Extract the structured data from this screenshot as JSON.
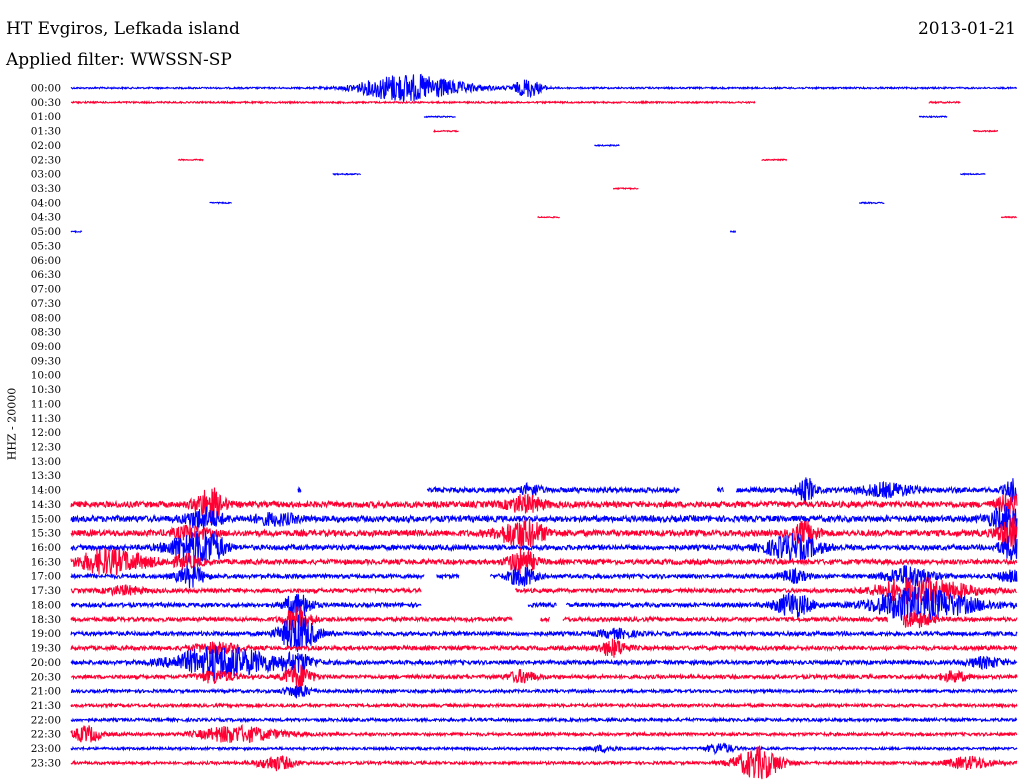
{
  "header": {
    "station": "HT Evgiros, Lefkada island",
    "date": "2013-01-21",
    "filter": "Applied filter: WWSSN-SP"
  },
  "chart_data": {
    "type": "line",
    "title": "HT Evgiros, Lefkada island",
    "subtitle": "Applied filter: WWSSN-SP",
    "date": "2013-01-21",
    "ylabel": "HHZ - 20000",
    "xlabel": "",
    "x_unit": "minutes",
    "x_range": [
      0,
      30
    ],
    "colors": {
      "even_rows": "#0000ff",
      "odd_rows": "#ff0033"
    },
    "rows": [
      {
        "label": "00:00",
        "segments": [
          [
            0,
            30
          ]
        ],
        "amp": 0.8,
        "events": [
          {
            "t": 10.5,
            "a": 14,
            "d": 0.9,
            "skew": 1.5
          },
          {
            "t": 14.5,
            "a": 9,
            "d": 0.3
          }
        ]
      },
      {
        "label": "00:30",
        "segments": [
          [
            0,
            21.7
          ],
          [
            27.2,
            28.2
          ]
        ],
        "amp": 0.8,
        "events": []
      },
      {
        "label": "01:00",
        "segments": [
          [
            11.2,
            12.2
          ],
          [
            26.9,
            27.8
          ]
        ],
        "amp": 0.6,
        "events": []
      },
      {
        "label": "01:30",
        "segments": [
          [
            11.5,
            12.3
          ],
          [
            28.6,
            29.4
          ]
        ],
        "amp": 0.6,
        "events": []
      },
      {
        "label": "02:00",
        "segments": [
          [
            16.6,
            17.4
          ]
        ],
        "amp": 0.6,
        "events": []
      },
      {
        "label": "02:30",
        "segments": [
          [
            3.4,
            4.2
          ],
          [
            21.9,
            22.7
          ]
        ],
        "amp": 0.6,
        "events": []
      },
      {
        "label": "03:00",
        "segments": [
          [
            8.3,
            9.2
          ],
          [
            28.2,
            29.0
          ]
        ],
        "amp": 0.6,
        "events": []
      },
      {
        "label": "03:30",
        "segments": [
          [
            17.2,
            18.0
          ]
        ],
        "amp": 0.6,
        "events": []
      },
      {
        "label": "04:00",
        "segments": [
          [
            4.4,
            5.1
          ],
          [
            25.0,
            25.8
          ]
        ],
        "amp": 0.6,
        "events": []
      },
      {
        "label": "04:30",
        "segments": [
          [
            14.8,
            15.5
          ],
          [
            29.5,
            30
          ]
        ],
        "amp": 0.6,
        "events": []
      },
      {
        "label": "05:00",
        "segments": [
          [
            0,
            0.35
          ],
          [
            20.9,
            21.1
          ]
        ],
        "amp": 0.6,
        "events": []
      },
      {
        "label": "05:30",
        "segments": [],
        "amp": 0,
        "events": []
      },
      {
        "label": "06:00",
        "segments": [],
        "amp": 0,
        "events": []
      },
      {
        "label": "06:30",
        "segments": [],
        "amp": 0,
        "events": []
      },
      {
        "label": "07:00",
        "segments": [],
        "amp": 0,
        "events": []
      },
      {
        "label": "07:30",
        "segments": [],
        "amp": 0,
        "events": []
      },
      {
        "label": "08:00",
        "segments": [],
        "amp": 0,
        "events": []
      },
      {
        "label": "08:30",
        "segments": [],
        "amp": 0,
        "events": []
      },
      {
        "label": "09:00",
        "segments": [],
        "amp": 0,
        "events": []
      },
      {
        "label": "09:30",
        "segments": [],
        "amp": 0,
        "events": []
      },
      {
        "label": "10:00",
        "segments": [],
        "amp": 0,
        "events": []
      },
      {
        "label": "10:30",
        "segments": [],
        "amp": 0,
        "events": []
      },
      {
        "label": "11:00",
        "segments": [],
        "amp": 0,
        "events": []
      },
      {
        "label": "11:30",
        "segments": [],
        "amp": 0,
        "events": []
      },
      {
        "label": "12:00",
        "segments": [],
        "amp": 0,
        "events": []
      },
      {
        "label": "12:30",
        "segments": [],
        "amp": 0,
        "events": []
      },
      {
        "label": "13:00",
        "segments": [],
        "amp": 0,
        "events": []
      },
      {
        "label": "13:30",
        "segments": [],
        "amp": 0,
        "events": []
      },
      {
        "label": "14:00",
        "segments": [
          [
            7.2,
            7.3
          ],
          [
            11.3,
            19.3
          ],
          [
            20.5,
            20.7
          ],
          [
            21.1,
            30
          ]
        ],
        "amp": 2.5,
        "events": [
          {
            "t": 14.6,
            "a": 6,
            "d": 0.2
          },
          {
            "t": 23.3,
            "a": 12,
            "d": 0.2
          },
          {
            "t": 25.9,
            "a": 6,
            "d": 0.6
          },
          {
            "t": 29.9,
            "a": 10,
            "d": 0.2
          }
        ]
      },
      {
        "label": "14:30",
        "segments": [
          [
            0,
            30
          ]
        ],
        "amp": 3,
        "events": [
          {
            "t": 4.4,
            "a": 16,
            "d": 0.3
          },
          {
            "t": 14.4,
            "a": 8,
            "d": 0.4
          },
          {
            "t": 29.8,
            "a": 10,
            "d": 0.3
          }
        ]
      },
      {
        "label": "15:00",
        "segments": [
          [
            0,
            30
          ]
        ],
        "amp": 3,
        "events": [
          {
            "t": 4.2,
            "a": 10,
            "d": 0.4
          },
          {
            "t": 6.5,
            "a": 5,
            "d": 0.5
          },
          {
            "t": 29.7,
            "a": 12,
            "d": 0.4
          }
        ]
      },
      {
        "label": "15:30",
        "segments": [
          [
            0,
            30
          ]
        ],
        "amp": 3,
        "events": [
          {
            "t": 3.8,
            "a": 6,
            "d": 0.4
          },
          {
            "t": 14.3,
            "a": 14,
            "d": 0.5
          },
          {
            "t": 23.3,
            "a": 10,
            "d": 0.3
          },
          {
            "t": 29.8,
            "a": 16,
            "d": 0.3
          }
        ]
      },
      {
        "label": "16:00",
        "segments": [
          [
            0,
            30
          ]
        ],
        "amp": 2.5,
        "events": [
          {
            "t": 3.8,
            "a": 14,
            "d": 0.5
          },
          {
            "t": 4.5,
            "a": 10,
            "d": 0.3
          },
          {
            "t": 22.9,
            "a": 12,
            "d": 0.6
          },
          {
            "t": 29.9,
            "a": 12,
            "d": 0.3
          }
        ]
      },
      {
        "label": "16:30",
        "segments": [
          [
            0,
            30
          ]
        ],
        "amp": 2.5,
        "events": [
          {
            "t": 1.1,
            "a": 12,
            "d": 0.6,
            "skew": 1.5
          },
          {
            "t": 3.7,
            "a": 6,
            "d": 0.3
          },
          {
            "t": 14.3,
            "a": 12,
            "d": 0.3
          }
        ]
      },
      {
        "label": "17:00",
        "segments": [
          [
            0,
            11.2
          ],
          [
            11.6,
            12.3
          ],
          [
            13.3,
            30
          ]
        ],
        "amp": 2,
        "events": [
          {
            "t": 3.8,
            "a": 10,
            "d": 0.3
          },
          {
            "t": 14.3,
            "a": 10,
            "d": 0.3
          },
          {
            "t": 22.9,
            "a": 6,
            "d": 0.3
          },
          {
            "t": 26.6,
            "a": 10,
            "d": 0.5
          },
          {
            "t": 29.8,
            "a": 5,
            "d": 0.3
          }
        ]
      },
      {
        "label": "17:30",
        "segments": [
          [
            0,
            11.1
          ],
          [
            14.1,
            30
          ]
        ],
        "amp": 2,
        "events": [
          {
            "t": 1.7,
            "a": 4,
            "d": 0.4
          },
          {
            "t": 26.7,
            "a": 13,
            "d": 0.8,
            "skew": 1.5
          }
        ]
      },
      {
        "label": "18:00",
        "segments": [
          [
            0,
            11.1
          ],
          [
            14.5,
            15.4
          ],
          [
            15.7,
            30
          ]
        ],
        "amp": 2,
        "events": [
          {
            "t": 7.2,
            "a": 12,
            "d": 0.3
          },
          {
            "t": 22.9,
            "a": 12,
            "d": 0.4
          },
          {
            "t": 26.7,
            "a": 16,
            "d": 0.9,
            "skew": 1.5
          }
        ]
      },
      {
        "label": "18:30",
        "segments": [
          [
            0,
            14.0
          ],
          [
            14.9,
            15.2
          ],
          [
            15.6,
            25.9
          ],
          [
            26.4,
            30
          ]
        ],
        "amp": 2,
        "events": [
          {
            "t": 7.2,
            "a": 12,
            "d": 0.3
          },
          {
            "t": 26.7,
            "a": 8,
            "d": 0.4
          }
        ]
      },
      {
        "label": "19:00",
        "segments": [
          [
            0,
            30
          ]
        ],
        "amp": 2,
        "events": [
          {
            "t": 7.2,
            "a": 18,
            "d": 0.4
          },
          {
            "t": 17.3,
            "a": 4,
            "d": 0.4
          }
        ]
      },
      {
        "label": "19:30",
        "segments": [
          [
            0,
            30
          ]
        ],
        "amp": 2,
        "events": [
          {
            "t": 4.6,
            "a": 5,
            "d": 0.5
          },
          {
            "t": 17.2,
            "a": 8,
            "d": 0.3
          }
        ]
      },
      {
        "label": "20:00",
        "segments": [
          [
            0,
            30
          ]
        ],
        "amp": 2,
        "events": [
          {
            "t": 4.6,
            "a": 16,
            "d": 0.9,
            "skew": 1.5
          },
          {
            "t": 7.2,
            "a": 8,
            "d": 0.3
          },
          {
            "t": 29.0,
            "a": 5,
            "d": 0.4
          }
        ]
      },
      {
        "label": "20:30",
        "segments": [
          [
            0,
            30
          ]
        ],
        "amp": 1.8,
        "events": [
          {
            "t": 4.6,
            "a": 6,
            "d": 0.4
          },
          {
            "t": 7.2,
            "a": 12,
            "d": 0.3
          },
          {
            "t": 14.3,
            "a": 6,
            "d": 0.3
          },
          {
            "t": 28.0,
            "a": 5,
            "d": 0.3
          }
        ]
      },
      {
        "label": "21:00",
        "segments": [
          [
            0,
            30
          ]
        ],
        "amp": 1.5,
        "events": [
          {
            "t": 7.2,
            "a": 6,
            "d": 0.3
          }
        ]
      },
      {
        "label": "21:30",
        "segments": [
          [
            0,
            30
          ]
        ],
        "amp": 1.5,
        "events": []
      },
      {
        "label": "22:00",
        "segments": [
          [
            0,
            30
          ]
        ],
        "amp": 1.5,
        "events": []
      },
      {
        "label": "22:30",
        "segments": [
          [
            0,
            30
          ]
        ],
        "amp": 1.5,
        "events": [
          {
            "t": 0.5,
            "a": 8,
            "d": 0.3
          },
          {
            "t": 5.1,
            "a": 8,
            "d": 0.7,
            "skew": 1.5
          }
        ]
      },
      {
        "label": "23:00",
        "segments": [
          [
            0,
            30
          ]
        ],
        "amp": 1.2,
        "events": [
          {
            "t": 16.9,
            "a": 3,
            "d": 0.3
          },
          {
            "t": 20.6,
            "a": 5,
            "d": 0.3
          }
        ]
      },
      {
        "label": "23:30",
        "segments": [
          [
            0,
            30
          ]
        ],
        "amp": 1.4,
        "events": [
          {
            "t": 6.5,
            "a": 7,
            "d": 0.4
          },
          {
            "t": 21.8,
            "a": 16,
            "d": 0.5
          },
          {
            "t": 28.5,
            "a": 6,
            "d": 0.5
          }
        ]
      }
    ]
  }
}
